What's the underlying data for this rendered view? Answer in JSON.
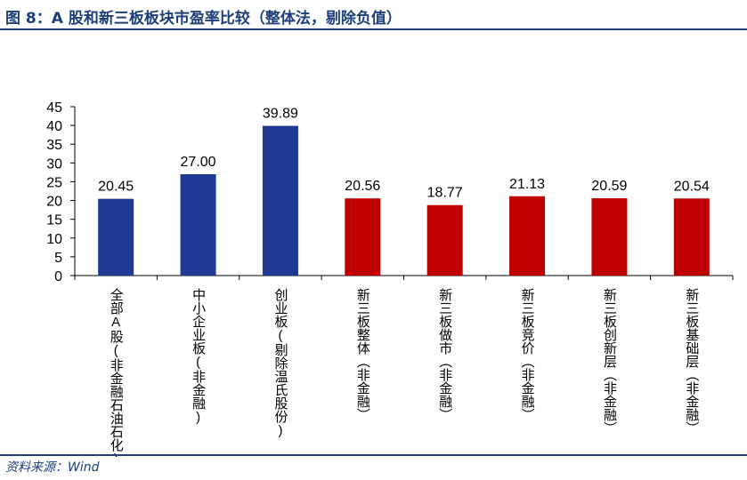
{
  "figure": {
    "title": "图 8：A 股和新三板板块市盈率比较（整体法，剔除负值）",
    "source": "资料来源：Wind"
  },
  "colors": {
    "title": "#1c3f7a",
    "a_share_bar": "#1f3a93",
    "neeq_bar": "#c00000",
    "axis": "#000000"
  },
  "chart_data": {
    "type": "bar",
    "categories": [
      "全部A股(非金融石油石化)",
      "中小企业板(非金融)",
      "创业板(剔除温氏股份)",
      "新三板整体（非金融）",
      "新三板做市（非金融）",
      "新三板竞价（非金融）",
      "新三板创新层（非金融）",
      "新三板基础层（非金融）"
    ],
    "values": [
      20.45,
      27.0,
      39.89,
      20.56,
      18.77,
      21.13,
      20.59,
      20.54
    ],
    "value_labels": [
      "20.45",
      "27.00",
      "39.89",
      "20.56",
      "18.77",
      "21.13",
      "20.59",
      "20.54"
    ],
    "bar_colors": [
      "#1f3a93",
      "#1f3a93",
      "#1f3a93",
      "#c00000",
      "#c00000",
      "#c00000",
      "#c00000",
      "#c00000"
    ],
    "ylim": [
      0,
      45
    ],
    "yticks": [
      0,
      5,
      10,
      15,
      20,
      25,
      30,
      35,
      40,
      45
    ],
    "grid": false,
    "legend": "none"
  }
}
